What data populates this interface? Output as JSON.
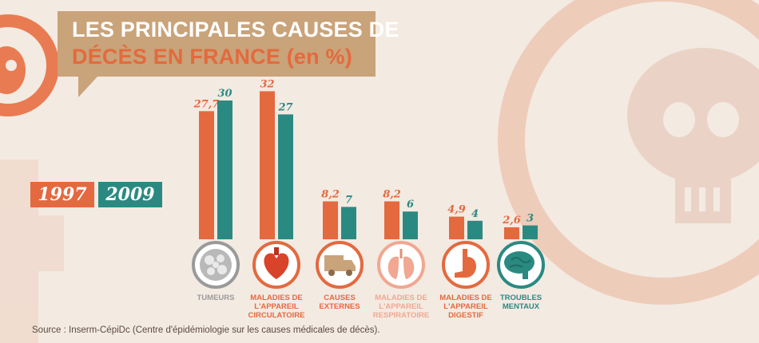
{
  "title": {
    "line1": "LES PRINCIPALES CAUSES DE",
    "line2": "DÉCÈS EN FRANCE (en %)"
  },
  "legend": {
    "year1": "1997",
    "year2": "2009"
  },
  "colors": {
    "year1": "#e4693f",
    "year2": "#2a8a82",
    "title_box": "#c9a37a",
    "background": "#f3eae2"
  },
  "source": "Source : Inserm-CépiDc (Centre d'épidémiologie sur les causes médicales de décès).",
  "chart_data": {
    "type": "bar",
    "title": "LES PRINCIPALES CAUSES DE DÉCÈS EN FRANCE (en %)",
    "xlabel": "",
    "ylabel": "",
    "ylim": [
      0,
      32
    ],
    "grid": false,
    "legend_position": "left",
    "categories": [
      "TUMEURS",
      "MALADIES DE L'APPAREIL CIRCULATOIRE",
      "CAUSES EXTERNES",
      "MALADIES DE L'APPAREIL RESPIRATOIRE",
      "MALADIES DE L'APPAREIL DIGESTIF",
      "TROUBLES MENTAUX"
    ],
    "category_label_lines": [
      [
        "TUMEURS"
      ],
      [
        "MALADIES DE",
        "L'APPAREIL",
        "CIRCULATOIRE"
      ],
      [
        "CAUSES",
        "EXTERNES"
      ],
      [
        "MALADIES DE",
        "L'APPAREIL",
        "RESPIRATOIRE"
      ],
      [
        "MALADIES DE",
        "L'APPAREIL",
        "DIGESTIF"
      ],
      [
        "TROUBLES",
        "MENTAUX"
      ]
    ],
    "category_colors": [
      "#9a9a9a",
      "#e4693f",
      "#e4693f",
      "#f1a791",
      "#e4693f",
      "#2a8a82"
    ],
    "icons": [
      "tumor-cells-icon",
      "heart-icon",
      "truck-icon",
      "lungs-icon",
      "stomach-icon",
      "brain-icon"
    ],
    "series": [
      {
        "name": "1997",
        "values": [
          27.7,
          32,
          8.2,
          8.2,
          4.9,
          2.6
        ],
        "labels": [
          "27,7",
          "32",
          "8,2",
          "8,2",
          "4,9",
          "2,6"
        ]
      },
      {
        "name": "2009",
        "values": [
          30,
          27,
          7,
          6,
          4,
          3
        ],
        "labels": [
          "30",
          "27",
          "7",
          "6",
          "4",
          "3"
        ]
      }
    ]
  }
}
